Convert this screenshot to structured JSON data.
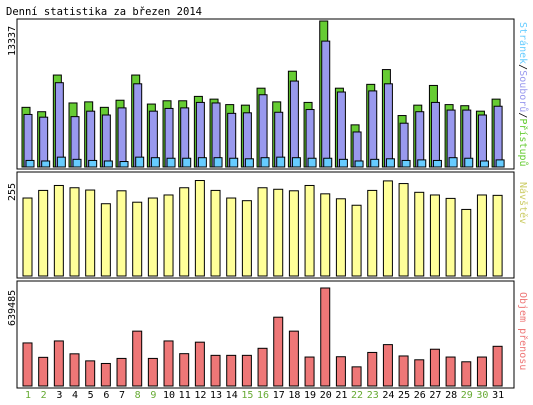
{
  "title": "Denní statistika za březen 2014",
  "colors": {
    "background": "#ffffff",
    "frame": "#000000",
    "hits": "#66cc33",
    "files": "#9999ee",
    "pages": "#66ccff",
    "visits": "#ffff99",
    "kbytes": "#ee7777",
    "weekday_label": "#000000",
    "weekend_label": "#66aa33"
  },
  "chart_data": [
    {
      "type": "bar",
      "name": "hits-files-pages",
      "ymax_label": "13337",
      "legend": {
        "hits": "Přístupů",
        "separator1": "/",
        "files": "Souborů",
        "separator2": "/",
        "pages": "Stránek"
      },
      "categories": [
        "1",
        "2",
        "3",
        "4",
        "5",
        "6",
        "7",
        "8",
        "9",
        "10",
        "11",
        "12",
        "13",
        "14",
        "15",
        "16",
        "17",
        "18",
        "19",
        "20",
        "21",
        "22",
        "23",
        "24",
        "25",
        "26",
        "27",
        "28",
        "29",
        "30",
        "31"
      ],
      "ylim": [
        0,
        13337
      ],
      "series": [
        {
          "name": "Přístupů",
          "key": "hits",
          "values": [
            5450,
            5050,
            8400,
            5850,
            5950,
            5450,
            6100,
            8400,
            5750,
            6050,
            6050,
            6450,
            6200,
            5700,
            5650,
            7200,
            5950,
            8750,
            5900,
            13337,
            7200,
            3850,
            7550,
            8900,
            4700,
            5650,
            7450,
            5700,
            5600,
            5100,
            6200
          ]
        },
        {
          "name": "Souborů",
          "key": "files",
          "values": [
            4800,
            4550,
            7700,
            4600,
            5100,
            4750,
            5400,
            7600,
            5100,
            5350,
            5400,
            5900,
            5850,
            4900,
            4950,
            6600,
            5000,
            7850,
            5250,
            11500,
            6850,
            3200,
            6950,
            7600,
            4000,
            5050,
            5900,
            5200,
            5200,
            4750,
            5550
          ]
        },
        {
          "name": "Stránek",
          "key": "pages",
          "values": [
            600,
            550,
            900,
            700,
            600,
            550,
            500,
            900,
            850,
            800,
            800,
            850,
            850,
            800,
            750,
            850,
            900,
            850,
            800,
            800,
            700,
            550,
            700,
            750,
            600,
            650,
            600,
            850,
            800,
            550,
            650
          ]
        }
      ]
    },
    {
      "type": "bar",
      "name": "visits",
      "ymax_label": "255",
      "legend": {
        "visits": "Návštěv"
      },
      "categories": [
        "1",
        "2",
        "3",
        "4",
        "5",
        "6",
        "7",
        "8",
        "9",
        "10",
        "11",
        "12",
        "13",
        "14",
        "15",
        "16",
        "17",
        "18",
        "19",
        "20",
        "21",
        "22",
        "23",
        "24",
        "25",
        "26",
        "27",
        "28",
        "29",
        "30",
        "31"
      ],
      "ylim": [
        0,
        255
      ],
      "series": [
        {
          "name": "Návštěv",
          "key": "visits",
          "values": [
            205,
            225,
            238,
            232,
            226,
            190,
            224,
            194,
            205,
            213,
            232,
            251,
            225,
            205,
            198,
            232,
            228,
            224,
            238,
            216,
            203,
            186,
            225,
            250,
            243,
            220,
            213,
            204,
            175,
            213,
            212
          ]
        }
      ]
    },
    {
      "type": "bar",
      "name": "kbytes",
      "ymax_label": "639485",
      "legend": {
        "kbytes": "Objem přenosu"
      },
      "categories": [
        "1",
        "2",
        "3",
        "4",
        "5",
        "6",
        "7",
        "8",
        "9",
        "10",
        "11",
        "12",
        "13",
        "14",
        "15",
        "16",
        "17",
        "18",
        "19",
        "20",
        "21",
        "22",
        "23",
        "24",
        "25",
        "26",
        "27",
        "28",
        "29",
        "30",
        "31"
      ],
      "ylim": [
        0,
        639485
      ],
      "series": [
        {
          "name": "Objem přenosu",
          "key": "kbytes",
          "values": [
            281000,
            187000,
            294000,
            210000,
            164000,
            147000,
            180000,
            358000,
            180000,
            294000,
            211000,
            286000,
            200000,
            200000,
            200000,
            246000,
            449000,
            358000,
            189000,
            639485,
            191000,
            125000,
            219000,
            270000,
            196000,
            171000,
            240000,
            189000,
            158000,
            189000,
            259000
          ]
        }
      ]
    }
  ],
  "x_labels": {
    "days": [
      "1",
      "2",
      "3",
      "4",
      "5",
      "6",
      "7",
      "8",
      "9",
      "10",
      "11",
      "12",
      "13",
      "14",
      "15",
      "16",
      "17",
      "18",
      "19",
      "20",
      "21",
      "22",
      "23",
      "24",
      "25",
      "26",
      "27",
      "28",
      "29",
      "30",
      "31"
    ],
    "weekend_days": [
      "1",
      "2",
      "8",
      "9",
      "15",
      "16",
      "22",
      "23",
      "29",
      "30"
    ]
  }
}
